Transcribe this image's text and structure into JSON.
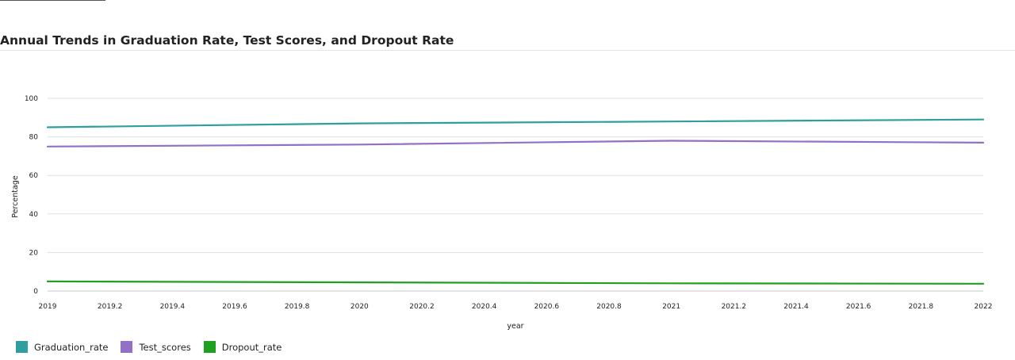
{
  "chart_data": {
    "type": "line",
    "title": "Annual Trends in Graduation Rate, Test Scores, and Dropout Rate",
    "xlabel": "year",
    "ylabel": "Percentage",
    "xlim": [
      2019,
      2022
    ],
    "ylim": [
      0,
      100
    ],
    "x_ticks": [
      "2019",
      "2019.2",
      "2019.4",
      "2019.6",
      "2019.8",
      "2020",
      "2020.2",
      "2020.4",
      "2020.6",
      "2020.8",
      "2021",
      "2021.2",
      "2021.4",
      "2021.6",
      "2021.8",
      "2022"
    ],
    "y_ticks": [
      "0",
      "20",
      "40",
      "60",
      "80",
      "100"
    ],
    "x": [
      2019,
      2020,
      2021,
      2022
    ],
    "series": [
      {
        "name": "Graduation_rate",
        "color": "#2e9e9e",
        "values": [
          85,
          87,
          88,
          89
        ]
      },
      {
        "name": "Test_scores",
        "color": "#9370c8",
        "values": [
          75,
          76,
          78,
          77
        ]
      },
      {
        "name": "Dropout_rate",
        "color": "#1fa01f",
        "values": [
          5,
          4.5,
          4,
          3.8
        ]
      }
    ],
    "grid": true,
    "legend_position": "bottom-left"
  }
}
